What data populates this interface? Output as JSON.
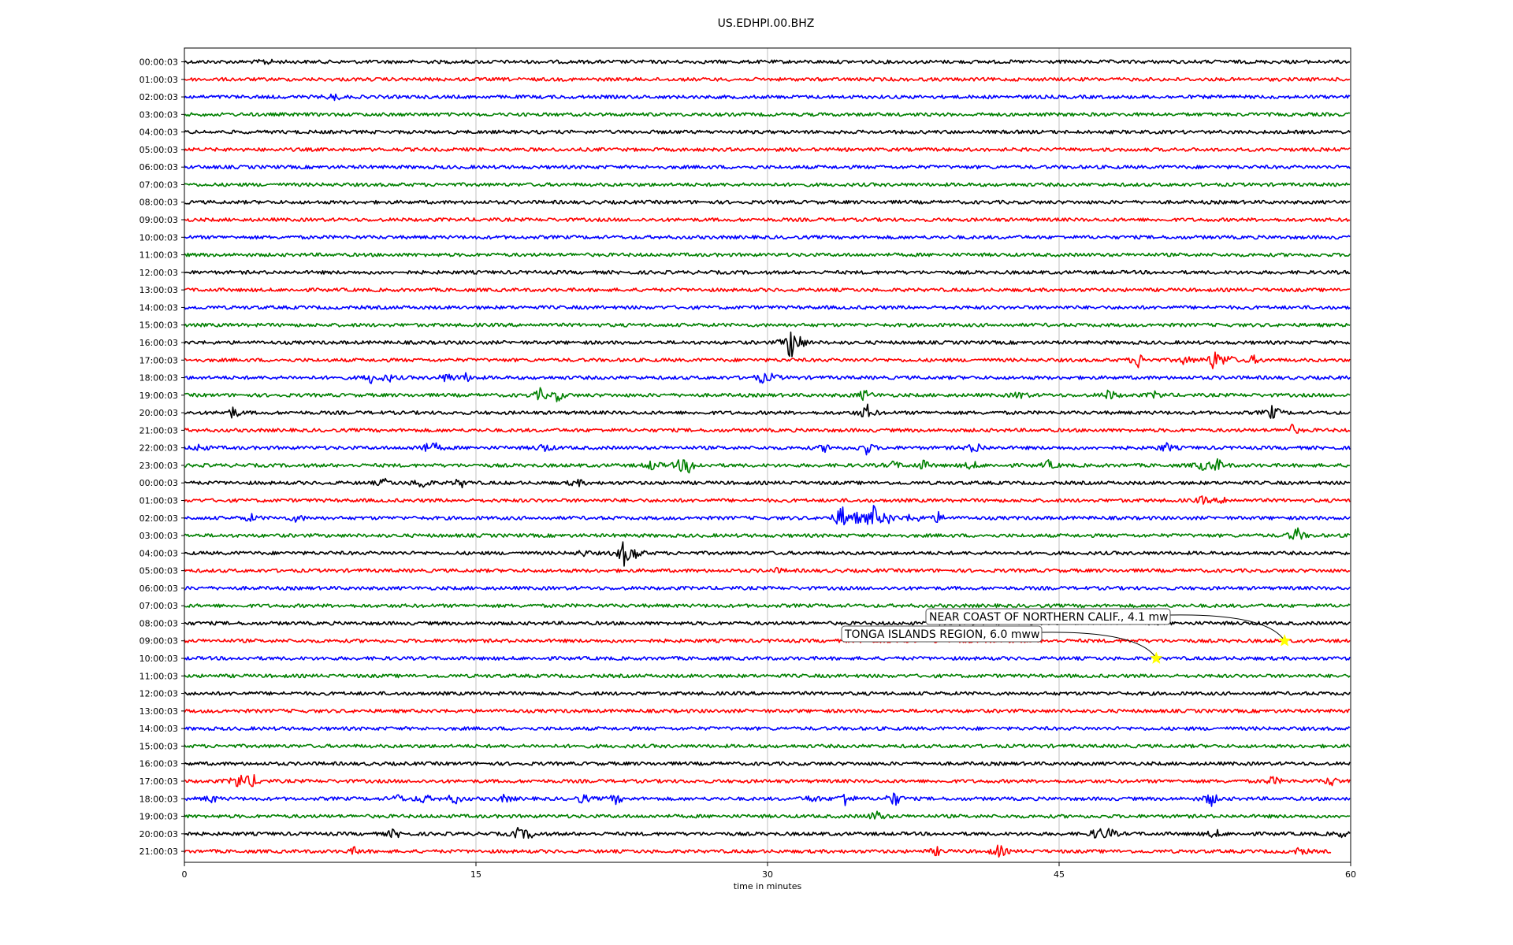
{
  "chart_data": {
    "type": "line",
    "title": "US.EDHPI.00.BHZ",
    "xlabel": "time in minutes",
    "xlim": [
      0,
      60
    ],
    "x_ticks": [
      "0",
      "15",
      "30",
      "45",
      "60"
    ],
    "x_tick_values": [
      0,
      15,
      30,
      45,
      60
    ],
    "grid": "vertical at x ticks",
    "trace_colors": [
      "#000000",
      "#ff0000",
      "#0000ff",
      "#008000"
    ],
    "rows": [
      "00:00:03",
      "01:00:03",
      "02:00:03",
      "03:00:03",
      "04:00:03",
      "05:00:03",
      "06:00:03",
      "07:00:03",
      "08:00:03",
      "09:00:03",
      "10:00:03",
      "11:00:03",
      "12:00:03",
      "13:00:03",
      "14:00:03",
      "15:00:03",
      "16:00:03",
      "17:00:03",
      "18:00:03",
      "19:00:03",
      "20:00:03",
      "21:00:03",
      "22:00:03",
      "23:00:03",
      "00:00:03",
      "01:00:03",
      "02:00:03",
      "03:00:03",
      "04:00:03",
      "05:00:03",
      "06:00:03",
      "07:00:03",
      "08:00:03",
      "09:00:03",
      "10:00:03",
      "11:00:03",
      "12:00:03",
      "13:00:03",
      "14:00:03",
      "15:00:03",
      "16:00:03",
      "17:00:03",
      "18:00:03",
      "19:00:03",
      "20:00:03",
      "21:00:03"
    ],
    "row_end_minute": {
      "45": 59
    },
    "bursts": [
      {
        "row": 0,
        "x": 4.2,
        "amp": 0.3
      },
      {
        "row": 2,
        "x": 7.7,
        "amp": 0.35
      },
      {
        "row": 16,
        "x": 31.2,
        "amp": 1.9
      },
      {
        "row": 16,
        "x": 31.6,
        "amp": 0.6
      },
      {
        "row": 17,
        "x": 49.1,
        "amp": 0.8
      },
      {
        "row": 17,
        "x": 51.5,
        "amp": 0.5
      },
      {
        "row": 17,
        "x": 53.0,
        "amp": 1.2
      },
      {
        "row": 17,
        "x": 53.7,
        "amp": 0.5
      },
      {
        "row": 17,
        "x": 55.0,
        "amp": 0.4
      },
      {
        "row": 18,
        "x": 9.6,
        "amp": 0.5
      },
      {
        "row": 18,
        "x": 10.5,
        "amp": 0.4
      },
      {
        "row": 18,
        "x": 13.5,
        "amp": 0.5
      },
      {
        "row": 18,
        "x": 14.5,
        "amp": 0.4
      },
      {
        "row": 18,
        "x": 29.7,
        "amp": 0.5
      },
      {
        "row": 18,
        "x": 30.3,
        "amp": 0.3
      },
      {
        "row": 19,
        "x": 18.3,
        "amp": 0.6
      },
      {
        "row": 19,
        "x": 19.2,
        "amp": 0.6
      },
      {
        "row": 19,
        "x": 35.0,
        "amp": 0.6
      },
      {
        "row": 19,
        "x": 43.0,
        "amp": 0.4
      },
      {
        "row": 19,
        "x": 47.6,
        "amp": 0.6
      },
      {
        "row": 19,
        "x": 50.0,
        "amp": 0.4
      },
      {
        "row": 20,
        "x": 2.5,
        "amp": 0.6
      },
      {
        "row": 20,
        "x": 35.1,
        "amp": 0.9
      },
      {
        "row": 20,
        "x": 56.0,
        "amp": 0.8
      },
      {
        "row": 21,
        "x": 57.0,
        "amp": 0.5
      },
      {
        "row": 22,
        "x": 0.8,
        "amp": 0.4
      },
      {
        "row": 22,
        "x": 12.3,
        "amp": 0.5
      },
      {
        "row": 22,
        "x": 12.9,
        "amp": 0.4
      },
      {
        "row": 22,
        "x": 18.5,
        "amp": 0.5
      },
      {
        "row": 22,
        "x": 33.0,
        "amp": 0.4
      },
      {
        "row": 22,
        "x": 35.1,
        "amp": 0.7
      },
      {
        "row": 22,
        "x": 40.7,
        "amp": 0.7
      },
      {
        "row": 22,
        "x": 50.5,
        "amp": 0.5
      },
      {
        "row": 23,
        "x": 24.1,
        "amp": 0.6
      },
      {
        "row": 23,
        "x": 25.5,
        "amp": 0.5
      },
      {
        "row": 23,
        "x": 26.0,
        "amp": 0.8
      },
      {
        "row": 23,
        "x": 36.5,
        "amp": 0.4
      },
      {
        "row": 23,
        "x": 38.0,
        "amp": 0.5
      },
      {
        "row": 23,
        "x": 40.5,
        "amp": 0.5
      },
      {
        "row": 23,
        "x": 44.5,
        "amp": 0.5
      },
      {
        "row": 23,
        "x": 52.3,
        "amp": 0.5
      },
      {
        "row": 23,
        "x": 53.1,
        "amp": 0.8
      },
      {
        "row": 24,
        "x": 10.3,
        "amp": 0.4
      },
      {
        "row": 24,
        "x": 12.2,
        "amp": 0.7
      },
      {
        "row": 24,
        "x": 14.2,
        "amp": 0.5
      },
      {
        "row": 24,
        "x": 20.2,
        "amp": 0.4
      },
      {
        "row": 25,
        "x": 52.4,
        "amp": 0.4
      },
      {
        "row": 25,
        "x": 53.5,
        "amp": 0.3
      },
      {
        "row": 26,
        "x": 3.4,
        "amp": 0.4
      },
      {
        "row": 26,
        "x": 5.8,
        "amp": 0.4
      },
      {
        "row": 26,
        "x": 33.8,
        "amp": 1.4
      },
      {
        "row": 26,
        "x": 34.5,
        "amp": 0.6
      },
      {
        "row": 26,
        "x": 35.4,
        "amp": 1.6
      },
      {
        "row": 26,
        "x": 36.2,
        "amp": 0.6
      },
      {
        "row": 26,
        "x": 37.5,
        "amp": 0.6
      },
      {
        "row": 26,
        "x": 38.8,
        "amp": 0.5
      },
      {
        "row": 27,
        "x": 57.2,
        "amp": 0.9
      },
      {
        "row": 28,
        "x": 22.6,
        "amp": 1.3
      },
      {
        "row": 28,
        "x": 23.2,
        "amp": 0.6
      },
      {
        "row": 28,
        "x": 20.5,
        "amp": 0.3
      },
      {
        "row": 29,
        "x": 30.5,
        "amp": 0.2
      },
      {
        "row": 41,
        "x": 2.8,
        "amp": 1.0
      },
      {
        "row": 41,
        "x": 3.5,
        "amp": 0.7
      },
      {
        "row": 41,
        "x": 56.0,
        "amp": 0.5
      },
      {
        "row": 41,
        "x": 59.0,
        "amp": 0.5
      },
      {
        "row": 42,
        "x": 1.4,
        "amp": 0.4
      },
      {
        "row": 42,
        "x": 11.0,
        "amp": 0.4
      },
      {
        "row": 42,
        "x": 12.3,
        "amp": 0.5
      },
      {
        "row": 42,
        "x": 13.9,
        "amp": 0.6
      },
      {
        "row": 42,
        "x": 16.5,
        "amp": 0.4
      },
      {
        "row": 42,
        "x": 20.5,
        "amp": 0.5
      },
      {
        "row": 42,
        "x": 22.2,
        "amp": 0.5
      },
      {
        "row": 42,
        "x": 32.3,
        "amp": 0.4
      },
      {
        "row": 42,
        "x": 34.0,
        "amp": 0.8
      },
      {
        "row": 42,
        "x": 36.5,
        "amp": 0.9
      },
      {
        "row": 42,
        "x": 52.8,
        "amp": 0.8
      },
      {
        "row": 43,
        "x": 35.6,
        "amp": 0.6
      },
      {
        "row": 44,
        "x": 10.8,
        "amp": 0.5
      },
      {
        "row": 44,
        "x": 17.2,
        "amp": 0.6
      },
      {
        "row": 44,
        "x": 17.8,
        "amp": 0.4
      },
      {
        "row": 44,
        "x": 47.0,
        "amp": 0.7
      },
      {
        "row": 44,
        "x": 47.6,
        "amp": 0.5
      },
      {
        "row": 44,
        "x": 53.0,
        "amp": 0.5
      },
      {
        "row": 44,
        "x": 59.5,
        "amp": 0.3
      },
      {
        "row": 45,
        "x": 8.8,
        "amp": 0.4
      },
      {
        "row": 45,
        "x": 38.7,
        "amp": 0.4
      },
      {
        "row": 45,
        "x": 41.9,
        "amp": 0.7
      },
      {
        "row": 45,
        "x": 57.4,
        "amp": 0.4
      }
    ],
    "annotations": [
      {
        "label": "NEAR COAST OF NORTHERN CALIF., 4.1 mw",
        "row": 33,
        "x": 56.6
      },
      {
        "label": "TONGA ISLANDS REGION, 6.0 mww",
        "row": 34,
        "x": 50.0
      }
    ],
    "marker_color": "#ffff00"
  }
}
